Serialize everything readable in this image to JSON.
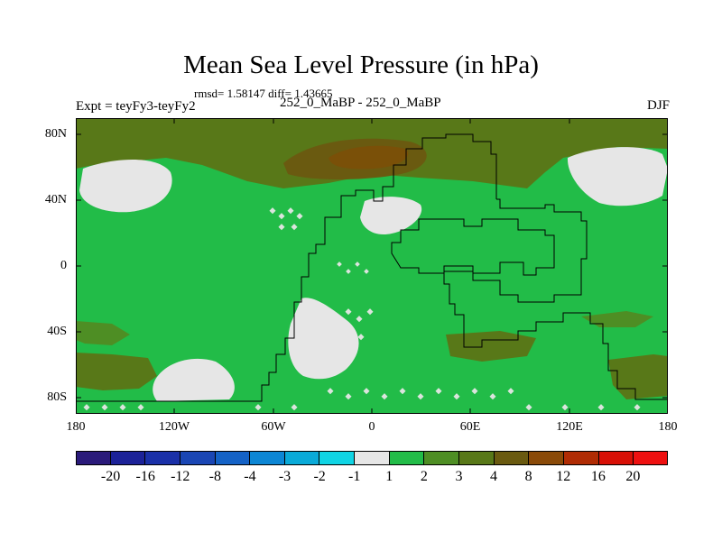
{
  "title": "Mean Sea Level Pressure (in hPa)",
  "stats": "rmsd= 1.58147 diff= 1.43665",
  "expt": "Expt = teyFy3-teyFy2",
  "subtitle": "252_0_MaBP - 252_0_MaBP",
  "season": "DJF",
  "lat_labels": [
    "80N",
    "40N",
    "0",
    "40S",
    "80S"
  ],
  "lat_values": [
    80,
    40,
    0,
    -40,
    -80
  ],
  "lon_labels": [
    "180",
    "120W",
    "60W",
    "0",
    "60E",
    "120E",
    "180"
  ],
  "lon_values": [
    -180,
    -120,
    -60,
    0,
    60,
    120,
    180
  ],
  "colorbar": {
    "labels": [
      "-20",
      "-16",
      "-12",
      "-8",
      "-4",
      "-3",
      "-2",
      "-1",
      "1",
      "2",
      "3",
      "4",
      "8",
      "12",
      "16",
      "20"
    ],
    "colors": [
      "#2a1a7a",
      "#1c2298",
      "#1a30a8",
      "#1a46b4",
      "#1462c6",
      "#0c86d4",
      "#0aaad8",
      "#10d4e4",
      "#e6e6e6",
      "#22bc48",
      "#4e8e24",
      "#587818",
      "#6a5a10",
      "#8a4a08",
      "#b02c04",
      "#d81006",
      "#ee1010"
    ]
  },
  "map_colors": {
    "base": "#22bc48",
    "light": "#e6e6e6",
    "mid": "#4e8e24",
    "dark": "#587818",
    "darker": "#6a5a10"
  }
}
